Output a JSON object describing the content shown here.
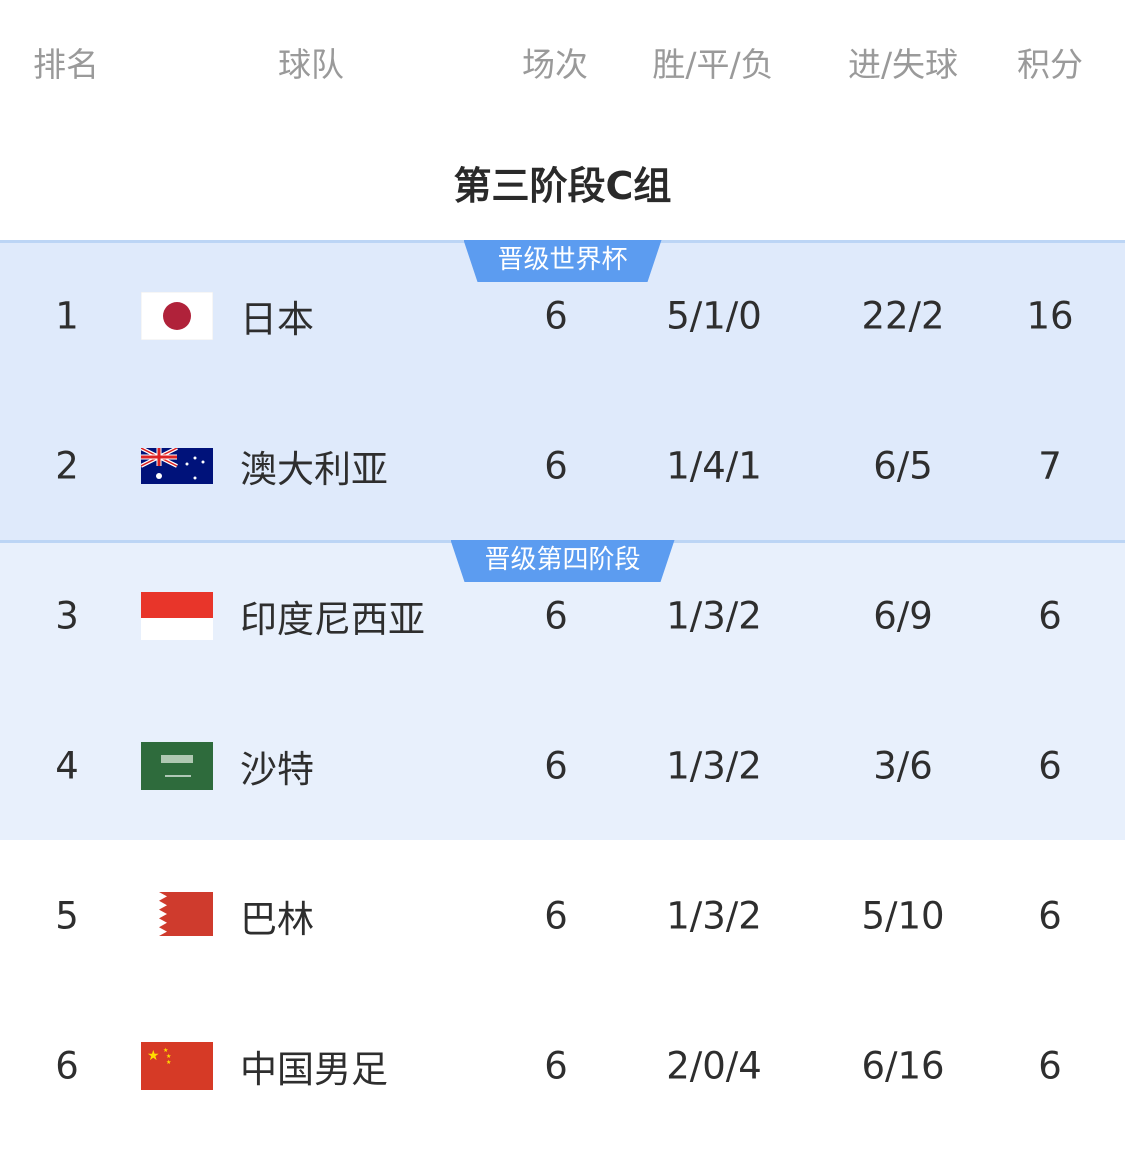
{
  "header": {
    "rank": "排名",
    "team": "球队",
    "matches": "场次",
    "wdl": "胜/平/负",
    "goals": "进/失球",
    "points": "积分"
  },
  "group_title": "第三阶段C组",
  "zones": [
    {
      "label": "晋级世界杯",
      "color": "#dfeafb"
    },
    {
      "label": "晋级第四阶段",
      "color": "#e8f0fc"
    }
  ],
  "badge_color": "#5c9cf0",
  "rows": [
    {
      "rank": "1",
      "flag": "japan-flag",
      "team": "日本",
      "matches": "6",
      "wdl": "5/1/0",
      "goals": "22/2",
      "points": "16"
    },
    {
      "rank": "2",
      "flag": "australia-flag",
      "team": "澳大利亚",
      "matches": "6",
      "wdl": "1/4/1",
      "goals": "6/5",
      "points": "7"
    },
    {
      "rank": "3",
      "flag": "indonesia-flag",
      "team": "印度尼西亚",
      "matches": "6",
      "wdl": "1/3/2",
      "goals": "6/9",
      "points": "6"
    },
    {
      "rank": "4",
      "flag": "saudi-arabia-flag",
      "team": "沙特",
      "matches": "6",
      "wdl": "1/3/2",
      "goals": "3/6",
      "points": "6"
    },
    {
      "rank": "5",
      "flag": "bahrain-flag",
      "team": "巴林",
      "matches": "6",
      "wdl": "1/3/2",
      "goals": "5/10",
      "points": "6"
    },
    {
      "rank": "6",
      "flag": "china-flag",
      "team": "中国男足",
      "matches": "6",
      "wdl": "2/0/4",
      "goals": "6/16",
      "points": "6"
    }
  ]
}
